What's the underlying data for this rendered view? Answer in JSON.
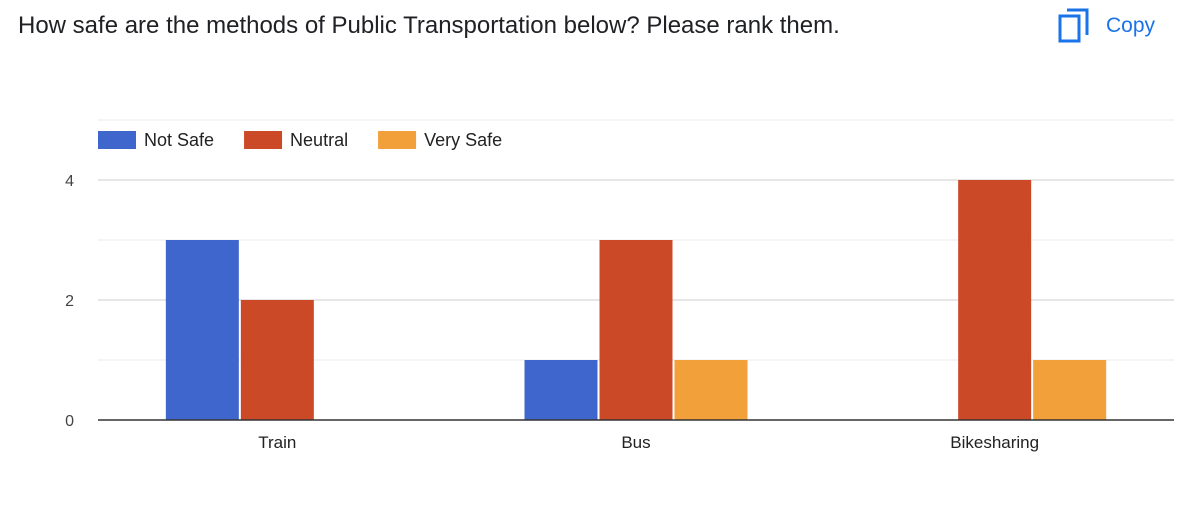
{
  "question": "How safe are the methods of Public Transportation below? Please rank them.",
  "copy_button": {
    "label": "Copy",
    "icon": "copy-icon"
  },
  "chart_data": {
    "type": "bar",
    "categories": [
      "Train",
      "Bus",
      "Bikesharing"
    ],
    "series": [
      {
        "name": "Not Safe",
        "color": "#3e66cc",
        "values": [
          3,
          1,
          0
        ]
      },
      {
        "name": "Neutral",
        "color": "#cc4928",
        "values": [
          2,
          3,
          4
        ]
      },
      {
        "name": "Very Safe",
        "color": "#f1a03a",
        "values": [
          0,
          1,
          1
        ]
      }
    ],
    "ylim": [
      0,
      5
    ],
    "yticks": [
      0,
      2,
      4
    ],
    "legend_position": "top-left",
    "grid": true
  }
}
